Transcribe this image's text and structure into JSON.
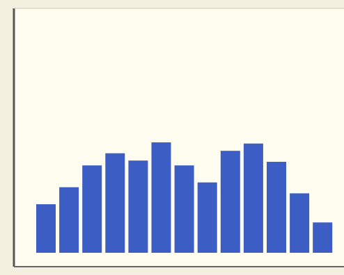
{
  "colors": {
    "bar": "#3b5dc4",
    "plot_background": "#fffdf0",
    "frame_edge": "#444444",
    "page_background": "#f4f0df"
  },
  "chart_data": {
    "type": "bar",
    "categories": [
      "",
      "",
      "",
      "",
      "",
      "",
      "",
      "",
      "",
      "",
      "",
      "",
      ""
    ],
    "values": [
      40,
      54,
      72,
      82,
      76,
      91,
      72,
      58,
      84,
      90,
      75,
      49,
      25
    ],
    "ylim": [
      0,
      100
    ],
    "grid": false,
    "legend": "none"
  }
}
